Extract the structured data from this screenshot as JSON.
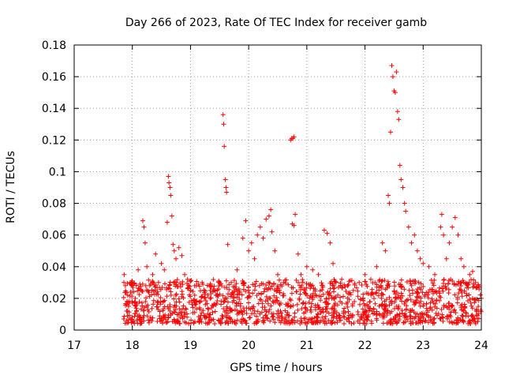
{
  "chart_data": {
    "type": "scatter",
    "title": "Day 266 of 2023, Rate Of TEC Index for receiver gamb",
    "xlabel": "GPS time / hours",
    "ylabel": "ROTI / TECUs",
    "xlim": [
      17,
      24
    ],
    "ylim": [
      0,
      0.18
    ],
    "x_ticks": [
      "17",
      "18",
      "19",
      "20",
      "21",
      "22",
      "23",
      "24"
    ],
    "y_ticks": [
      "0",
      "0.02",
      "0.04",
      "0.06",
      "0.08",
      "0.1",
      "0.12",
      "0.14",
      "0.16",
      "0.18"
    ],
    "x_tick_values": [
      17,
      18,
      19,
      20,
      21,
      22,
      23,
      24
    ],
    "y_tick_values": [
      0,
      0.02,
      0.04,
      0.06,
      0.08,
      0.1,
      0.12,
      0.14,
      0.16,
      0.18
    ],
    "grid": true,
    "marker": "+",
    "color": "#ff0000",
    "series": [
      {
        "name": "ROTI",
        "points": [
          [
            17.86,
            0.035
          ],
          [
            17.88,
            0.028
          ],
          [
            17.9,
            0.012
          ],
          [
            17.92,
            0.022
          ],
          [
            17.95,
            0.018
          ],
          [
            18.0,
            0.03
          ],
          [
            18.05,
            0.02
          ],
          [
            18.1,
            0.038
          ],
          [
            18.15,
            0.025
          ],
          [
            18.18,
            0.069
          ],
          [
            18.2,
            0.065
          ],
          [
            18.22,
            0.055
          ],
          [
            18.25,
            0.04
          ],
          [
            18.3,
            0.028
          ],
          [
            18.35,
            0.035
          ],
          [
            18.4,
            0.048
          ],
          [
            18.45,
            0.03
          ],
          [
            18.5,
            0.042
          ],
          [
            18.55,
            0.038
          ],
          [
            18.6,
            0.068
          ],
          [
            18.62,
            0.097
          ],
          [
            18.63,
            0.093
          ],
          [
            18.65,
            0.09
          ],
          [
            18.66,
            0.085
          ],
          [
            18.68,
            0.072
          ],
          [
            18.7,
            0.054
          ],
          [
            18.72,
            0.05
          ],
          [
            18.75,
            0.045
          ],
          [
            18.8,
            0.052
          ],
          [
            18.85,
            0.047
          ],
          [
            18.9,
            0.035
          ],
          [
            18.95,
            0.032
          ],
          [
            19.0,
            0.025
          ],
          [
            19.1,
            0.028
          ],
          [
            19.2,
            0.03
          ],
          [
            19.3,
            0.022
          ],
          [
            19.4,
            0.026
          ],
          [
            19.5,
            0.03
          ],
          [
            19.56,
            0.136
          ],
          [
            19.57,
            0.13
          ],
          [
            19.58,
            0.116
          ],
          [
            19.6,
            0.095
          ],
          [
            19.61,
            0.09
          ],
          [
            19.62,
            0.087
          ],
          [
            19.64,
            0.054
          ],
          [
            19.7,
            0.03
          ],
          [
            19.8,
            0.038
          ],
          [
            19.9,
            0.058
          ],
          [
            19.95,
            0.069
          ],
          [
            20.0,
            0.05
          ],
          [
            20.05,
            0.055
          ],
          [
            20.1,
            0.045
          ],
          [
            20.15,
            0.06
          ],
          [
            20.2,
            0.065
          ],
          [
            20.25,
            0.058
          ],
          [
            20.3,
            0.07
          ],
          [
            20.35,
            0.072
          ],
          [
            20.38,
            0.076
          ],
          [
            20.4,
            0.062
          ],
          [
            20.45,
            0.05
          ],
          [
            20.5,
            0.035
          ],
          [
            20.6,
            0.03
          ],
          [
            20.72,
            0.12
          ],
          [
            20.74,
            0.121
          ],
          [
            20.76,
            0.121
          ],
          [
            20.78,
            0.122
          ],
          [
            20.75,
            0.067
          ],
          [
            20.78,
            0.066
          ],
          [
            20.8,
            0.073
          ],
          [
            20.85,
            0.048
          ],
          [
            20.9,
            0.035
          ],
          [
            21.0,
            0.04
          ],
          [
            21.1,
            0.038
          ],
          [
            21.2,
            0.035
          ],
          [
            21.3,
            0.063
          ],
          [
            21.35,
            0.061
          ],
          [
            21.4,
            0.055
          ],
          [
            21.45,
            0.042
          ],
          [
            21.5,
            0.03
          ],
          [
            21.6,
            0.032
          ],
          [
            21.7,
            0.028
          ],
          [
            21.8,
            0.025
          ],
          [
            21.9,
            0.03
          ],
          [
            22.0,
            0.035
          ],
          [
            22.1,
            0.032
          ],
          [
            22.2,
            0.04
          ],
          [
            22.3,
            0.055
          ],
          [
            22.35,
            0.05
          ],
          [
            22.4,
            0.085
          ],
          [
            22.42,
            0.08
          ],
          [
            22.44,
            0.125
          ],
          [
            22.46,
            0.167
          ],
          [
            22.48,
            0.16
          ],
          [
            22.5,
            0.151
          ],
          [
            22.52,
            0.15
          ],
          [
            22.54,
            0.163
          ],
          [
            22.56,
            0.138
          ],
          [
            22.58,
            0.133
          ],
          [
            22.6,
            0.104
          ],
          [
            22.62,
            0.095
          ],
          [
            22.65,
            0.09
          ],
          [
            22.68,
            0.08
          ],
          [
            22.7,
            0.075
          ],
          [
            22.75,
            0.065
          ],
          [
            22.8,
            0.055
          ],
          [
            22.85,
            0.06
          ],
          [
            22.9,
            0.05
          ],
          [
            22.95,
            0.045
          ],
          [
            23.0,
            0.042
          ],
          [
            23.1,
            0.04
          ],
          [
            23.2,
            0.035
          ],
          [
            23.3,
            0.065
          ],
          [
            23.32,
            0.073
          ],
          [
            23.35,
            0.06
          ],
          [
            23.4,
            0.045
          ],
          [
            23.45,
            0.055
          ],
          [
            23.5,
            0.065
          ],
          [
            23.55,
            0.071
          ],
          [
            23.6,
            0.06
          ],
          [
            23.65,
            0.045
          ],
          [
            23.7,
            0.04
          ],
          [
            23.8,
            0.035
          ],
          [
            23.85,
            0.037
          ],
          [
            23.9,
            0.03
          ],
          [
            23.95,
            0.028
          ],
          [
            24.0,
            0.02
          ]
        ]
      }
    ],
    "background_band": {
      "x_range": [
        17.85,
        24.0
      ],
      "y_range": [
        0.004,
        0.032
      ],
      "description": "dense cloud of points"
    }
  }
}
